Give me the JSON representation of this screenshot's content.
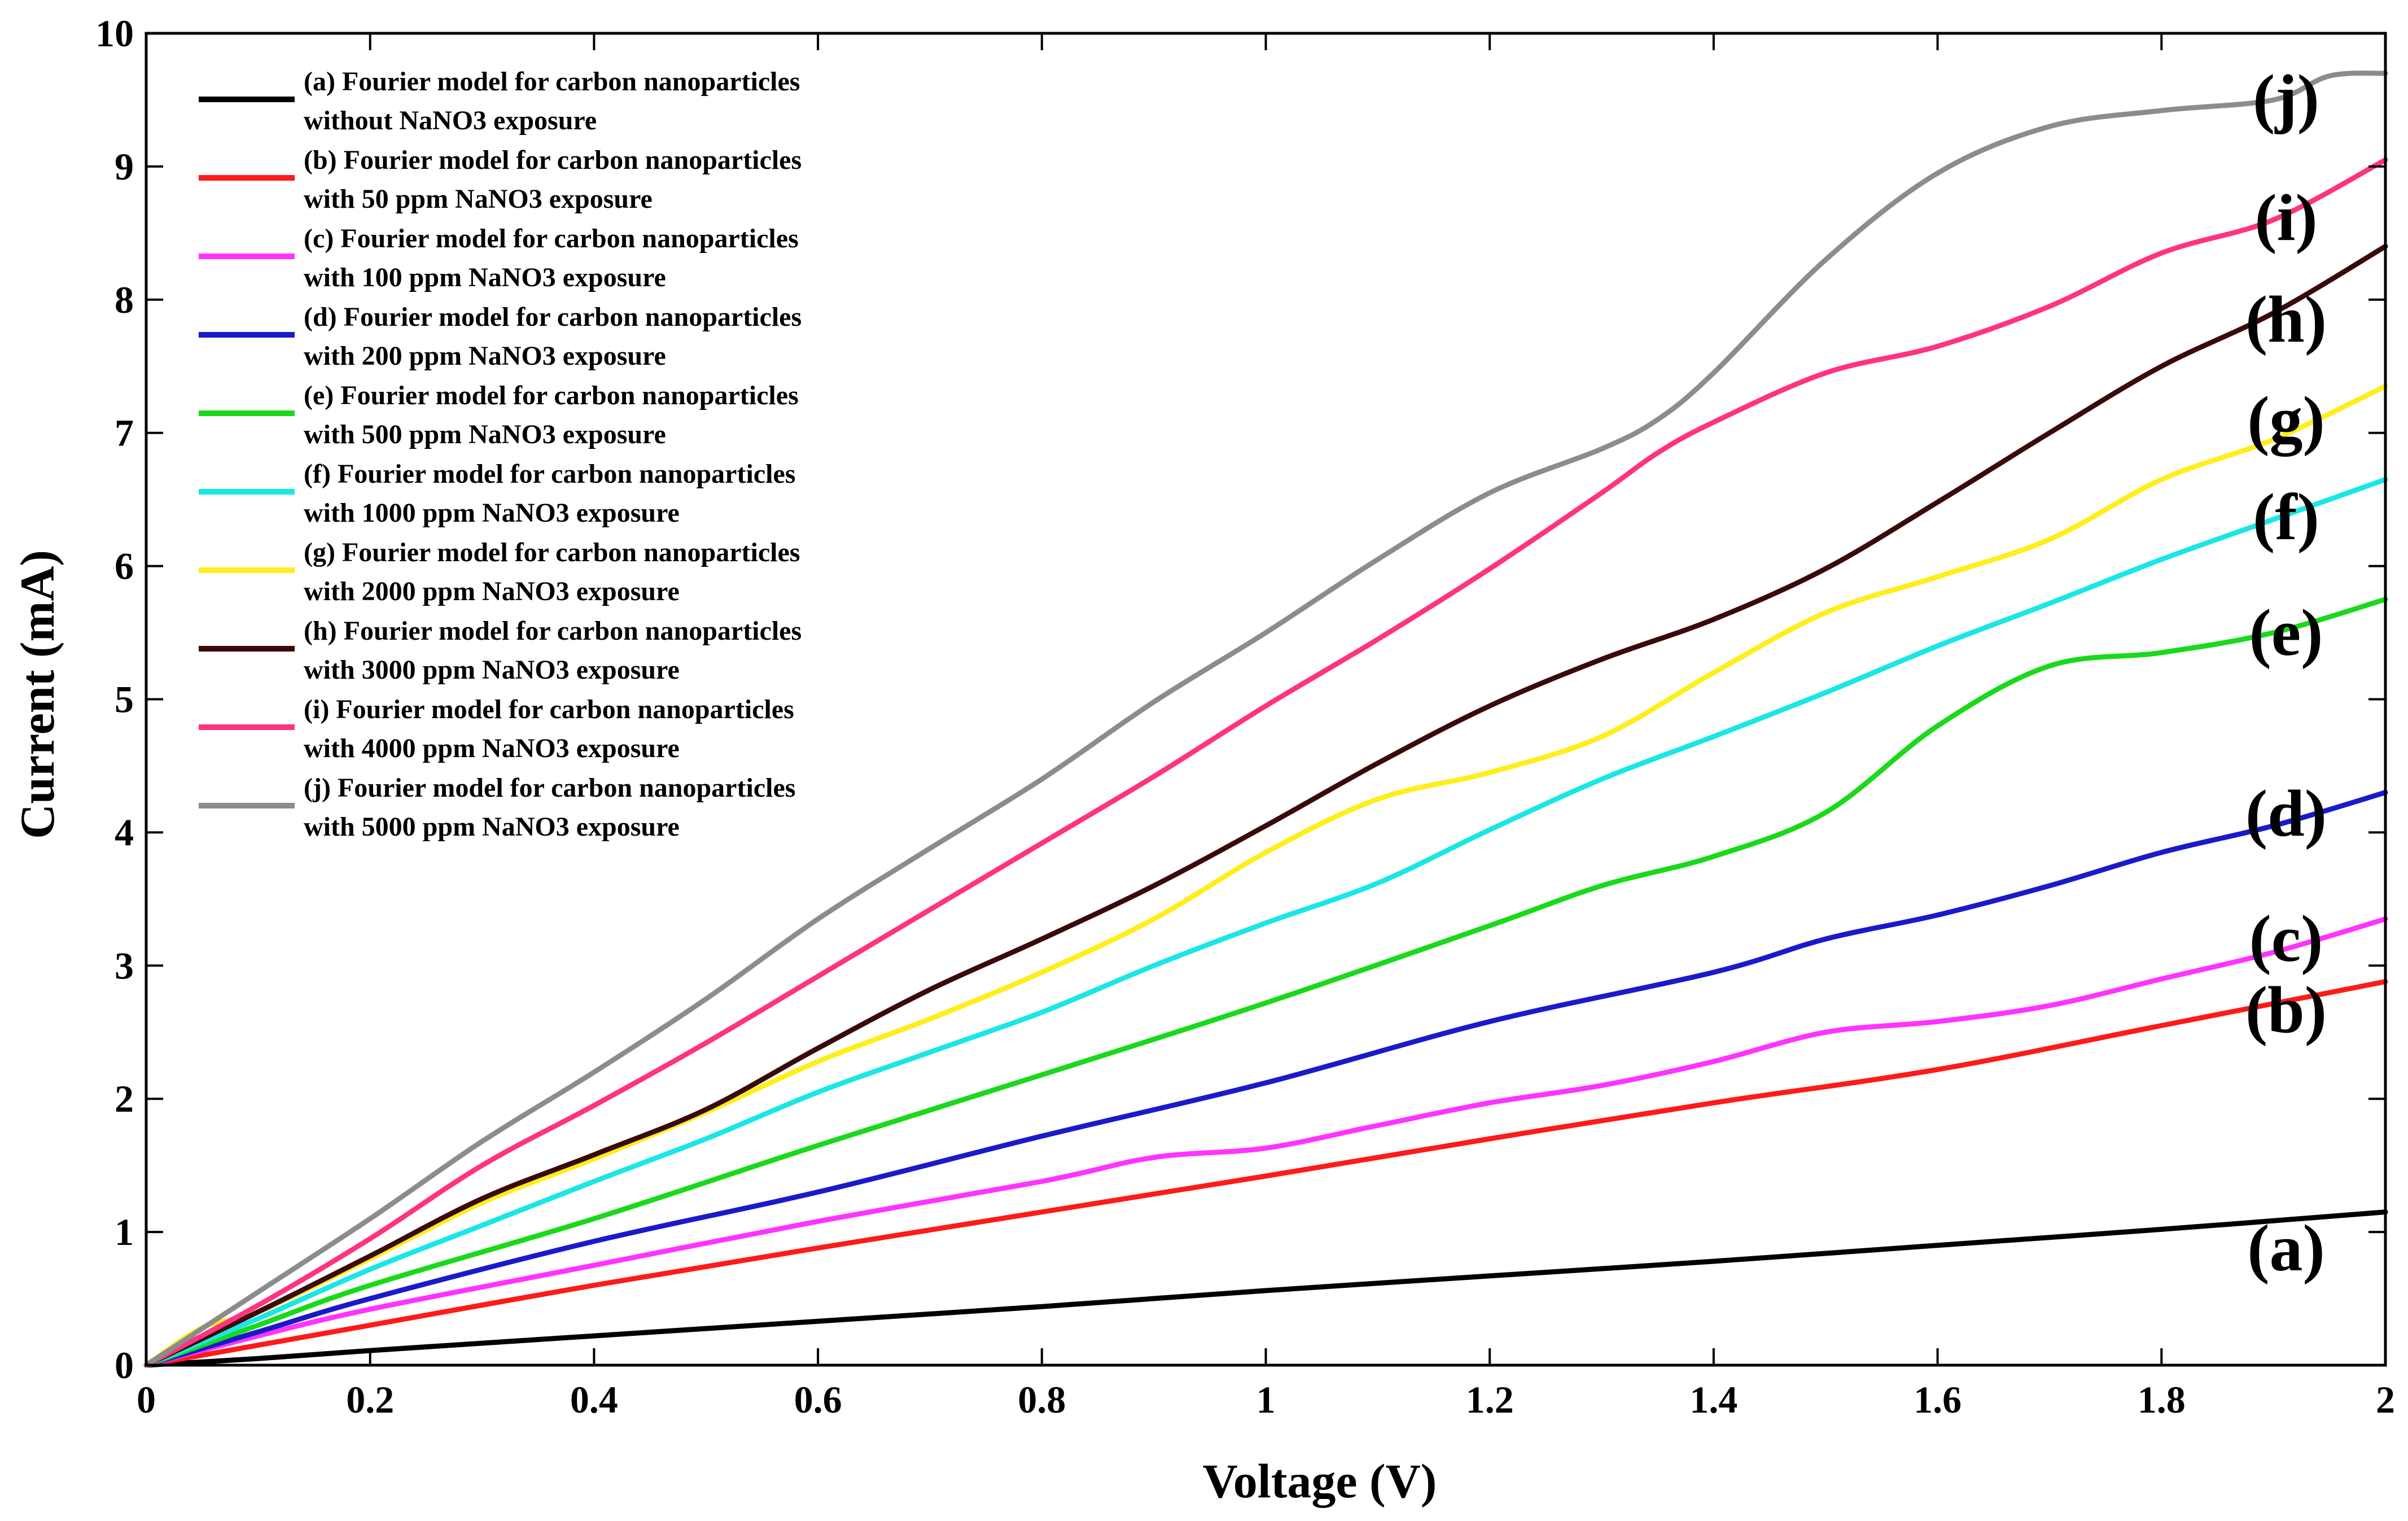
{
  "chart_data": {
    "type": "line",
    "title": "",
    "xlabel": "Voltage (V)",
    "ylabel": "Current (mA)",
    "xlim": [
      0,
      2
    ],
    "ylim": [
      0,
      10
    ],
    "xticks": [
      0,
      0.2,
      0.4,
      0.6,
      0.8,
      1,
      1.2,
      1.4,
      1.6,
      1.8,
      2
    ],
    "xtick_labels": [
      "0",
      "0.2",
      "0.4",
      "0.6",
      "0.8",
      "1",
      "1.2",
      "1.4",
      "1.6",
      "1.8",
      "2"
    ],
    "yticks": [
      0,
      1,
      2,
      3,
      4,
      5,
      6,
      7,
      8,
      9,
      10
    ],
    "ytick_labels": [
      "0",
      "1",
      "2",
      "3",
      "4",
      "5",
      "6",
      "7",
      "8",
      "9",
      "10"
    ],
    "grid": false,
    "legend_position": "top-left",
    "series": [
      {
        "name": "a",
        "tag": "(a)",
        "color": "#000000",
        "legend": [
          "(a) Fourier model for carbon nanoparticles",
          "without NaNO3 exposure"
        ],
        "x": [
          0,
          0.1,
          0.2,
          0.4,
          0.6,
          0.8,
          1.0,
          1.2,
          1.4,
          1.6,
          1.8,
          2.0
        ],
        "y": [
          0,
          0.05,
          0.11,
          0.22,
          0.33,
          0.44,
          0.56,
          0.67,
          0.78,
          0.9,
          1.02,
          1.15
        ]
      },
      {
        "name": "b",
        "tag": "(b)",
        "color": "#ff1a1a",
        "legend": [
          "(b) Fourier model for carbon nanoparticles",
          "with 50 ppm NaNO3 exposure"
        ],
        "x": [
          0,
          0.1,
          0.2,
          0.4,
          0.6,
          0.8,
          1.0,
          1.2,
          1.4,
          1.6,
          1.8,
          2.0
        ],
        "y": [
          0,
          0.15,
          0.3,
          0.6,
          0.88,
          1.15,
          1.42,
          1.7,
          1.97,
          2.22,
          2.55,
          2.88
        ]
      },
      {
        "name": "c",
        "tag": "(c)",
        "color": "#ff33ff",
        "legend": [
          "(c) Fourier model for carbon nanoparticles",
          "with 100 ppm NaNO3 exposure"
        ],
        "x": [
          0,
          0.1,
          0.2,
          0.4,
          0.6,
          0.8,
          0.9,
          1.0,
          1.1,
          1.2,
          1.3,
          1.4,
          1.5,
          1.6,
          1.7,
          1.8,
          1.9,
          2.0
        ],
        "y": [
          0,
          0.22,
          0.42,
          0.75,
          1.08,
          1.38,
          1.56,
          1.63,
          1.8,
          1.97,
          2.1,
          2.28,
          2.5,
          2.58,
          2.7,
          2.9,
          3.1,
          3.35
        ]
      },
      {
        "name": "d",
        "tag": "(d)",
        "color": "#1a1acc",
        "legend": [
          "(d) Fourier model for carbon nanoparticles",
          "with 200 ppm NaNO3 exposure"
        ],
        "x": [
          0,
          0.1,
          0.2,
          0.4,
          0.6,
          0.8,
          1.0,
          1.2,
          1.4,
          1.5,
          1.6,
          1.7,
          1.8,
          1.9,
          2.0
        ],
        "y": [
          0,
          0.25,
          0.5,
          0.93,
          1.3,
          1.72,
          2.12,
          2.58,
          2.95,
          3.2,
          3.38,
          3.6,
          3.85,
          4.05,
          4.3
        ]
      },
      {
        "name": "e",
        "tag": "(e)",
        "color": "#1ad91a",
        "legend": [
          "(e) Fourier model for carbon nanoparticles",
          "with 500 ppm NaNO3 exposure"
        ],
        "x": [
          0,
          0.1,
          0.2,
          0.4,
          0.6,
          0.8,
          1.0,
          1.2,
          1.3,
          1.4,
          1.5,
          1.6,
          1.7,
          1.8,
          1.9,
          2.0
        ],
        "y": [
          0,
          0.3,
          0.6,
          1.1,
          1.65,
          2.18,
          2.72,
          3.3,
          3.6,
          3.82,
          4.15,
          4.8,
          5.25,
          5.35,
          5.5,
          5.75
        ]
      },
      {
        "name": "f",
        "tag": "(f)",
        "color": "#1ae6e6",
        "legend": [
          "(f) Fourier model for carbon nanoparticles",
          "with 1000 ppm NaNO3 exposure"
        ],
        "x": [
          0,
          0.1,
          0.2,
          0.3,
          0.4,
          0.5,
          0.6,
          0.7,
          0.8,
          0.9,
          1.0,
          1.1,
          1.2,
          1.3,
          1.4,
          1.5,
          1.6,
          1.7,
          1.8,
          1.9,
          2.0
        ],
        "y": [
          0,
          0.35,
          0.72,
          1.05,
          1.38,
          1.7,
          2.05,
          2.35,
          2.65,
          3.0,
          3.32,
          3.62,
          4.02,
          4.4,
          4.72,
          5.05,
          5.4,
          5.72,
          6.05,
          6.35,
          6.65
        ]
      },
      {
        "name": "g",
        "tag": "(g)",
        "color": "#ffee1a",
        "legend": [
          "(g) Fourier model for carbon nanoparticles",
          "with 2000 ppm NaNO3 exposure"
        ],
        "x": [
          0,
          0.05,
          0.1,
          0.2,
          0.3,
          0.4,
          0.5,
          0.6,
          0.7,
          0.8,
          0.9,
          1.0,
          1.1,
          1.2,
          1.3,
          1.4,
          1.5,
          1.6,
          1.7,
          1.8,
          1.9,
          2.0
        ],
        "y": [
          0,
          0.28,
          0.4,
          0.8,
          1.22,
          1.55,
          1.9,
          2.28,
          2.6,
          2.95,
          3.35,
          3.85,
          4.25,
          4.45,
          4.72,
          5.2,
          5.65,
          5.92,
          6.2,
          6.65,
          6.95,
          7.35
        ]
      },
      {
        "name": "h",
        "tag": "(h)",
        "color": "#3a0a0a",
        "legend": [
          "(h) Fourier model for carbon nanoparticles",
          "with 3000 ppm NaNO3 exposure"
        ],
        "x": [
          0,
          0.1,
          0.2,
          0.3,
          0.4,
          0.5,
          0.6,
          0.7,
          0.8,
          0.9,
          1.0,
          1.1,
          1.2,
          1.3,
          1.4,
          1.5,
          1.6,
          1.7,
          1.8,
          1.9,
          2.0
        ],
        "y": [
          0,
          0.4,
          0.82,
          1.25,
          1.58,
          1.92,
          2.38,
          2.82,
          3.2,
          3.6,
          4.05,
          4.52,
          4.95,
          5.3,
          5.6,
          5.98,
          6.48,
          7.0,
          7.5,
          7.9,
          8.4
        ]
      },
      {
        "name": "i",
        "tag": "(i)",
        "color": "#ff3380",
        "legend": [
          "(i) Fourier model for carbon nanoparticles",
          "with 4000 ppm NaNO3 exposure"
        ],
        "x": [
          0,
          0.1,
          0.2,
          0.3,
          0.4,
          0.5,
          0.6,
          0.7,
          0.8,
          0.9,
          1.0,
          1.1,
          1.2,
          1.3,
          1.35,
          1.4,
          1.5,
          1.6,
          1.7,
          1.8,
          1.9,
          2.0
        ],
        "y": [
          0,
          0.45,
          0.95,
          1.5,
          1.95,
          2.42,
          2.92,
          3.42,
          3.92,
          4.42,
          4.95,
          5.45,
          5.98,
          6.55,
          6.85,
          7.08,
          7.45,
          7.65,
          7.95,
          8.35,
          8.6,
          9.05
        ]
      },
      {
        "name": "j",
        "tag": "(j)",
        "color": "#8c8c8c",
        "legend": [
          "(j) Fourier model for carbon nanoparticles",
          "with 5000 ppm NaNO3 exposure"
        ],
        "x": [
          0,
          0.1,
          0.2,
          0.3,
          0.4,
          0.5,
          0.6,
          0.7,
          0.8,
          0.9,
          1.0,
          1.1,
          1.2,
          1.3,
          1.35,
          1.4,
          1.5,
          1.6,
          1.7,
          1.8,
          1.9,
          1.95,
          2.0
        ],
        "y": [
          0,
          0.55,
          1.1,
          1.68,
          2.2,
          2.75,
          3.35,
          3.88,
          4.4,
          4.98,
          5.5,
          6.05,
          6.55,
          6.88,
          7.1,
          7.45,
          8.3,
          8.95,
          9.3,
          9.42,
          9.5,
          9.68,
          9.7
        ]
      }
    ]
  }
}
